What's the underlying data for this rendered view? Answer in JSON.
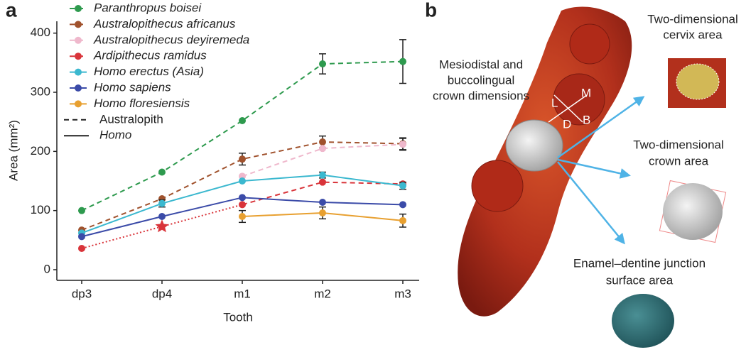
{
  "panel_a_label": "a",
  "chart_data": {
    "type": "line",
    "x_label": "Tooth",
    "y_label": "Area (mm²)",
    "categories": [
      "dp3",
      "dp4",
      "m1",
      "m2",
      "m3"
    ],
    "ylim": [
      -18,
      420
    ],
    "yticks": [
      0,
      100,
      200,
      300,
      400
    ],
    "series": [
      {
        "name": "Paranthropus boisei",
        "color": "#2e9a4e",
        "style": "dashed",
        "values": [
          100,
          165,
          252,
          348,
          352
        ],
        "errors": [
          null,
          null,
          null,
          17,
          37
        ]
      },
      {
        "name": "Australopithecus africanus",
        "color": "#a0522d",
        "style": "dashed",
        "values": [
          67,
          120,
          187,
          216,
          213
        ],
        "errors": [
          null,
          null,
          10,
          10,
          10
        ]
      },
      {
        "name": "Australopithecus deyiremeda",
        "color": "#efb8cc",
        "style": "dashed",
        "values": [
          null,
          null,
          158,
          205,
          212
        ],
        "errors": [
          null,
          null,
          null,
          null,
          10
        ]
      },
      {
        "name": "Ardipithecus ramidus",
        "color": "#d9343a",
        "style": "dashed",
        "segment_styles": [
          "dotted",
          "dotted",
          "dashed",
          "dashed"
        ],
        "markers": [
          "circle",
          "star",
          "circle",
          "circle",
          "circle"
        ],
        "values": [
          36,
          73,
          110,
          148,
          145
        ],
        "errors": [
          null,
          null,
          null,
          null,
          null
        ]
      },
      {
        "name": "Homo erectus (Asia)",
        "color": "#3bb8cf",
        "style": "solid",
        "values": [
          62,
          112,
          150,
          160,
          142
        ],
        "errors": [
          null,
          6,
          null,
          5,
          6
        ]
      },
      {
        "name": "Homo sapiens",
        "color": "#3b4ba8",
        "style": "solid",
        "values": [
          56,
          90,
          122,
          114,
          110
        ],
        "errors": [
          null,
          null,
          null,
          null,
          null
        ]
      },
      {
        "name": "Homo floresiensis",
        "color": "#e8a030",
        "style": "solid",
        "values": [
          null,
          null,
          90,
          96,
          83
        ],
        "errors": [
          null,
          null,
          10,
          10,
          11
        ]
      }
    ],
    "style_legend": [
      {
        "label": "Australopith",
        "style": "dashed"
      },
      {
        "label": "Homo",
        "style": "solid"
      }
    ]
  },
  "panel_b": {
    "label": "b",
    "crown_dimensions": [
      "Mesiodistal and",
      "buccolingual",
      "crown dimensions"
    ],
    "axes_letters": [
      "L",
      "M",
      "D",
      "B"
    ],
    "cervix": [
      "Two-dimensional",
      "cervix area"
    ],
    "crown": [
      "Two-dimensional",
      "crown area"
    ],
    "edj": [
      "Enamel–dentine junction",
      "surface area"
    ]
  }
}
